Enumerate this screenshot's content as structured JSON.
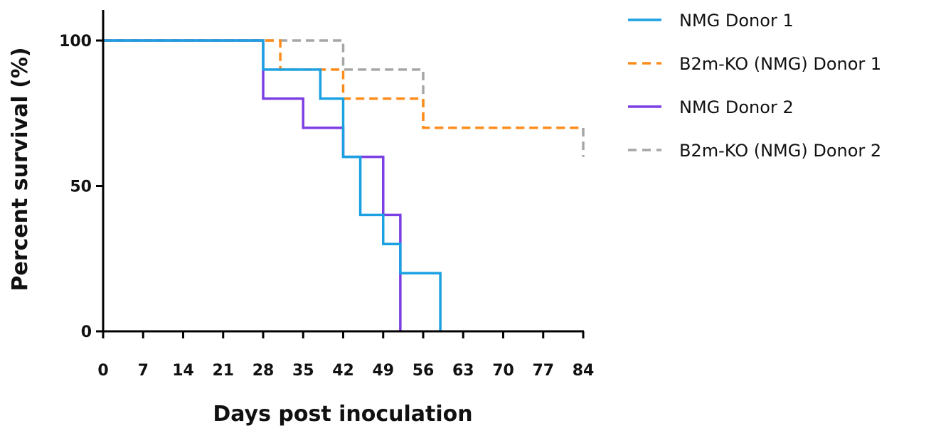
{
  "chart_data": {
    "type": "line",
    "subtype": "kaplan-meier-step",
    "xlabel": "Days post inoculation",
    "ylabel": "Percent survival (%)",
    "xlim": [
      0,
      84
    ],
    "ylim": [
      0,
      100
    ],
    "xticks": [
      0,
      7,
      14,
      21,
      28,
      35,
      42,
      49,
      56,
      63,
      70,
      77,
      84
    ],
    "yticks": [
      0,
      50,
      100
    ],
    "grid": false,
    "legend_position": "right",
    "series": [
      {
        "name": "NMG Donor 1",
        "color": "#1ba1e2",
        "dash": "solid",
        "x": [
          0,
          28,
          38,
          42,
          45,
          49,
          52,
          59
        ],
        "y": [
          100,
          90,
          80,
          60,
          40,
          30,
          20,
          0
        ]
      },
      {
        "name": "B2m-KO (NMG) Donor 1",
        "color": "#ff8c1a",
        "dash": "dashed",
        "x": [
          0,
          31,
          42,
          56,
          84
        ],
        "y": [
          100,
          90,
          80,
          70,
          70
        ]
      },
      {
        "name": "NMG Donor 2",
        "color": "#7b3fe4",
        "dash": "solid",
        "x": [
          0,
          28,
          35,
          42,
          49,
          52
        ],
        "y": [
          100,
          80,
          70,
          60,
          40,
          0
        ]
      },
      {
        "name": "B2m-KO (NMG) Donor 2",
        "color": "#a6a6a6",
        "dash": "dashed",
        "x": [
          0,
          42,
          56,
          84
        ],
        "y": [
          100,
          90,
          70,
          60
        ]
      }
    ]
  }
}
